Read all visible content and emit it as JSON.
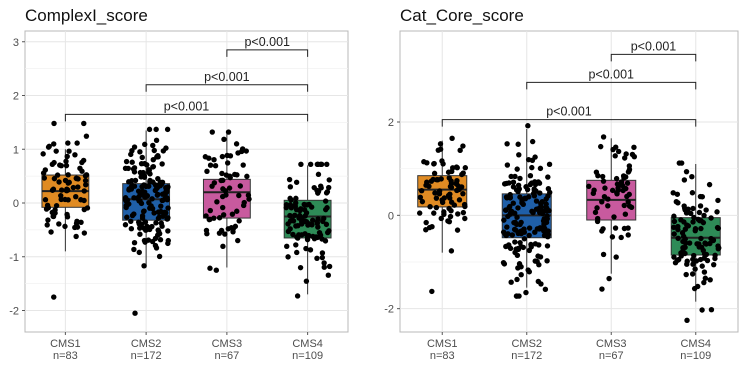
{
  "chart_data": [
    {
      "type": "box",
      "title": "ComplexI_score",
      "xlabel": "",
      "ylabel": "",
      "ylim": [
        -2.4,
        3.2
      ],
      "yticks": [
        -2,
        -1,
        0,
        1,
        2,
        3
      ],
      "grid": true,
      "categories": [
        "CMS1",
        "CMS2",
        "CMS3",
        "CMS4"
      ],
      "counts": [
        "n=83",
        "n=172",
        "n=67",
        "n=109"
      ],
      "colors": [
        "#e08b23",
        "#1f5fa8",
        "#c85a9e",
        "#2e8b57"
      ],
      "boxes": [
        {
          "q1": -0.08,
          "median": 0.22,
          "q3": 0.52,
          "whisker_low": -0.9,
          "whisker_high": 1.0,
          "points_min": -1.75,
          "points_max": 1.48,
          "n": 83
        },
        {
          "q1": -0.32,
          "median": 0.07,
          "q3": 0.36,
          "whisker_low": -1.2,
          "whisker_high": 1.35,
          "points_min": -2.05,
          "points_max": 1.37,
          "n": 172
        },
        {
          "q1": -0.28,
          "median": 0.2,
          "q3": 0.44,
          "whisker_low": -1.2,
          "whisker_high": 1.3,
          "points_min": -1.25,
          "points_max": 1.32,
          "n": 67
        },
        {
          "q1": -0.65,
          "median": -0.25,
          "q3": 0.05,
          "whisker_low": -1.7,
          "whisker_high": 0.7,
          "points_min": -1.73,
          "points_max": 0.72,
          "n": 109
        }
      ],
      "comparisons": [
        {
          "from": "CMS3",
          "to": "CMS4",
          "label": "p<0.001",
          "y": 2.85
        },
        {
          "from": "CMS2",
          "to": "CMS4",
          "label": "p<0.001",
          "y": 2.2
        },
        {
          "from": "CMS1",
          "to": "CMS4",
          "label": "p<0.001",
          "y": 1.65
        }
      ]
    },
    {
      "type": "box",
      "title": "Cat_Core_score",
      "xlabel": "",
      "ylabel": "",
      "ylim": [
        -2.5,
        3.95
      ],
      "yticks": [
        -2,
        0,
        2
      ],
      "grid": true,
      "categories": [
        "CMS1",
        "CMS2",
        "CMS3",
        "CMS4"
      ],
      "counts": [
        "n=83",
        "n=172",
        "n=67",
        "n=109"
      ],
      "colors": [
        "#e08b23",
        "#1f5fa8",
        "#c85a9e",
        "#2e8b57"
      ],
      "boxes": [
        {
          "q1": 0.18,
          "median": 0.55,
          "q3": 0.85,
          "whisker_low": -0.8,
          "whisker_high": 1.6,
          "points_min": -1.63,
          "points_max": 1.65,
          "n": 83
        },
        {
          "q1": -0.48,
          "median": 0.0,
          "q3": 0.46,
          "whisker_low": -1.55,
          "whisker_high": 1.85,
          "points_min": -1.73,
          "points_max": 1.92,
          "n": 172
        },
        {
          "q1": -0.1,
          "median": 0.33,
          "q3": 0.75,
          "whisker_low": -1.25,
          "whisker_high": 1.65,
          "points_min": -1.58,
          "points_max": 1.68,
          "n": 67
        },
        {
          "q1": -0.85,
          "median": -0.48,
          "q3": -0.05,
          "whisker_low": -1.85,
          "whisker_high": 1.1,
          "points_min": -2.25,
          "points_max": 1.12,
          "n": 109
        }
      ],
      "comparisons": [
        {
          "from": "CMS3",
          "to": "CMS4",
          "label": "p<0.001",
          "y": 3.45
        },
        {
          "from": "CMS2",
          "to": "CMS4",
          "label": "p<0.001",
          "y": 2.85
        },
        {
          "from": "CMS1",
          "to": "CMS4",
          "label": "p<0.001",
          "y": 2.05
        }
      ]
    }
  ]
}
